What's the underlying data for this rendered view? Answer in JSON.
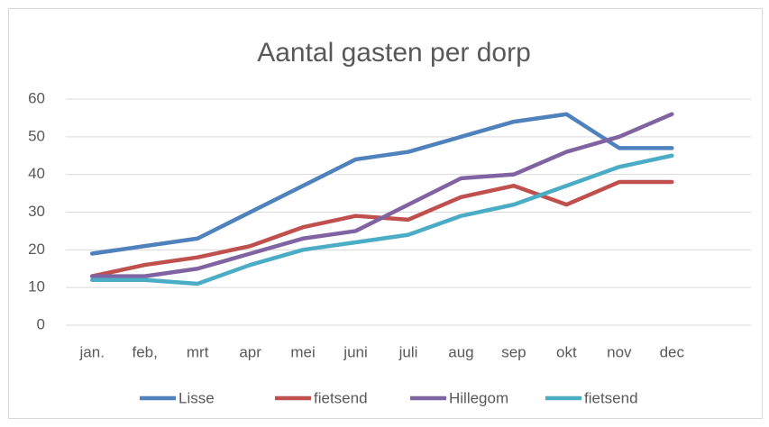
{
  "chart_data": {
    "type": "line",
    "title": "Aantal gasten per dorp",
    "categories": [
      "jan.",
      "feb,",
      "mrt",
      "apr",
      "mei",
      "juni",
      "juli",
      "aug",
      "sep",
      "okt",
      "nov",
      "dec",
      null
    ],
    "series": [
      {
        "name": "Lisse",
        "color": "#4f81bd",
        "values": [
          19,
          21,
          23,
          30,
          37,
          44,
          46,
          50,
          54,
          56,
          47,
          47,
          null
        ]
      },
      {
        "name": "fietsend",
        "color": "#c0504d",
        "values": [
          13,
          16,
          18,
          21,
          26,
          29,
          28,
          34,
          37,
          32,
          38,
          38,
          null
        ]
      },
      {
        "name": "Hillegom",
        "color": "#8064a2",
        "values": [
          13,
          13,
          15,
          19,
          23,
          25,
          32,
          39,
          40,
          46,
          50,
          56,
          null
        ]
      },
      {
        "name": "fietsend",
        "color": "#4bacc6",
        "values": [
          12,
          12,
          11,
          16,
          20,
          22,
          24,
          29,
          32,
          37,
          42,
          45,
          null
        ]
      }
    ],
    "ylim": [
      0,
      60
    ],
    "yticks": [
      0,
      10,
      20,
      30,
      40,
      50,
      60
    ],
    "grid": true,
    "legend": "bottom"
  }
}
